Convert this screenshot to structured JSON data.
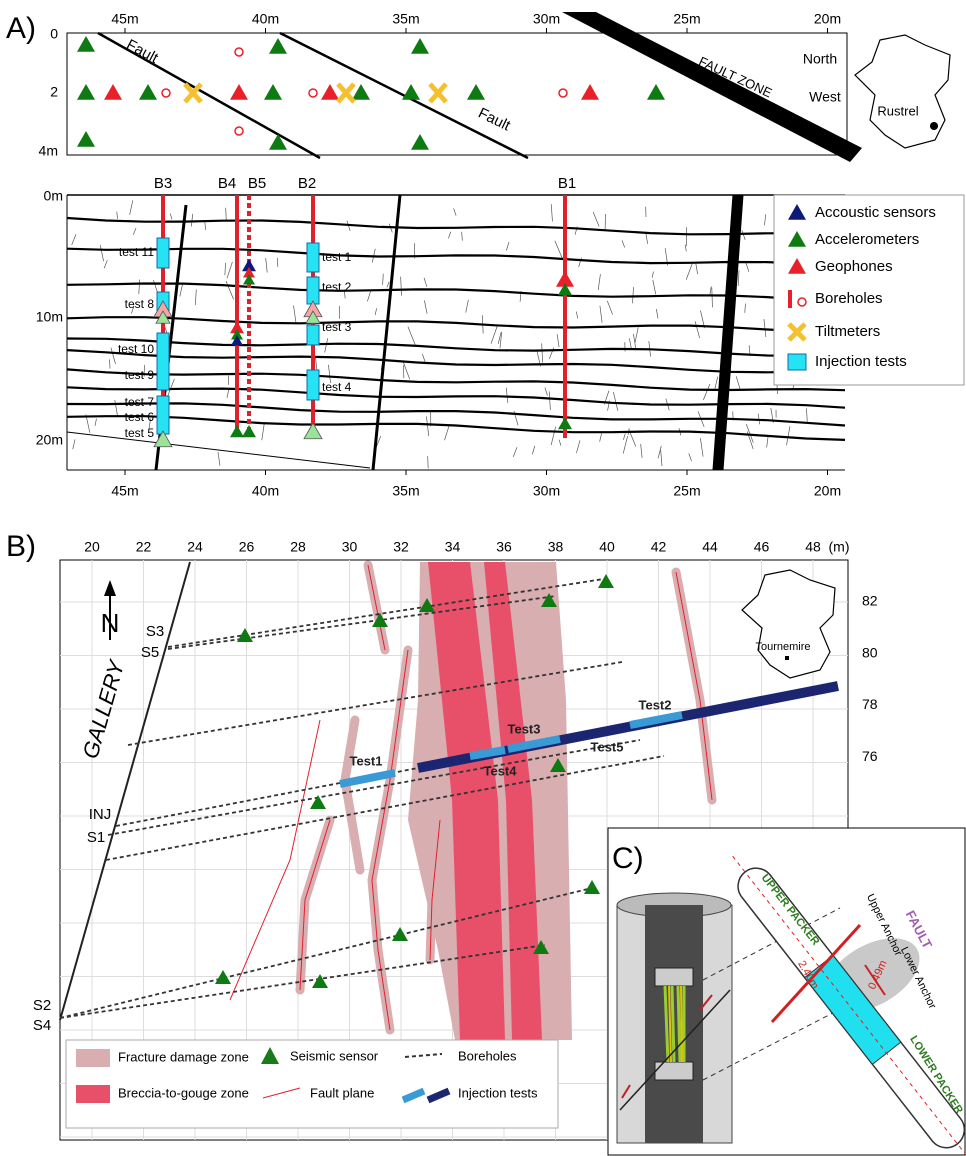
{
  "panel_a": {
    "label": "A)",
    "top_map": {
      "x_axis": [
        "45m",
        "40m",
        "35m",
        "30m",
        "25m",
        "20m"
      ],
      "depth_axis": [
        "0",
        "2",
        "4m"
      ],
      "faults": [
        "Fault",
        "Fault"
      ],
      "fault_zone": "FAULT ZONE",
      "orientation": [
        "North",
        "West"
      ],
      "site": "Rustrel"
    },
    "section": {
      "depth_axis": [
        "0m",
        "10m",
        "20m"
      ],
      "boreholes": [
        "B3",
        "B4",
        "B5",
        "B2",
        "B1"
      ],
      "tests_b3": [
        "test 11",
        "test 8",
        "test 10",
        "test 9",
        "test 7",
        "test 6",
        "test 5"
      ],
      "tests_b2": [
        "test 1",
        "test 2",
        "test 3",
        "test 4"
      ],
      "x_axis": [
        "45m",
        "40m",
        "35m",
        "30m",
        "25m",
        "20m"
      ]
    },
    "legend": [
      "Accoustic sensors",
      "Accelerometers",
      "Geophones",
      "Boreholes",
      "Tiltmeters",
      "Injection tests"
    ]
  },
  "panel_b": {
    "label": "B)",
    "x_axis": [
      "20",
      "22",
      "24",
      "26",
      "28",
      "30",
      "32",
      "34",
      "36",
      "38",
      "40",
      "42",
      "44",
      "46",
      "48"
    ],
    "x_unit": "(m)",
    "y_axis": [
      "82",
      "80",
      "78",
      "76"
    ],
    "north": "N",
    "gallery": "GALLERY",
    "boreholes": [
      "S3",
      "S5",
      "INJ",
      "S1",
      "S2",
      "S4"
    ],
    "tests": [
      "Test1",
      "Test2",
      "Test3",
      "Test4",
      "Test5"
    ],
    "site": "Tournemire",
    "legend": [
      "Fracture damage zone",
      "Seismic sensor",
      "Boreholes",
      "Breccia-to-gouge zone",
      "Fault plane",
      "Injection tests"
    ]
  },
  "panel_c": {
    "label": "C)",
    "upper_packer": "UPPER PACKER",
    "lower_packer": "LOWER PACKER",
    "upper_anchor": "Upper Anchor",
    "lower_anchor": "Lower Anchor",
    "fault": "FAULT",
    "dimensions": [
      "0.49m",
      "2.40m"
    ]
  }
}
